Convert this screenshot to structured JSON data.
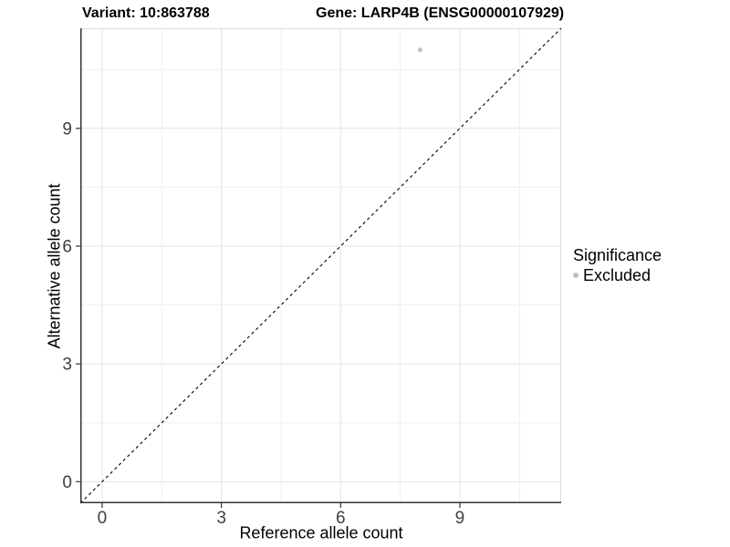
{
  "chart_data": {
    "type": "scatter",
    "title_left": "Variant: 10:863788",
    "title_right": "Gene: LARP4B (ENSG00000107929)",
    "xlabel": "Reference allele count",
    "ylabel": "Alternative allele count",
    "xlim": [
      -0.55,
      11.55
    ],
    "ylim": [
      -0.55,
      11.55
    ],
    "xticks": [
      0,
      3,
      6,
      9
    ],
    "yticks": [
      0,
      3,
      6,
      9
    ],
    "minor_xticks": [
      1.5,
      4.5,
      7.5,
      10.5
    ],
    "minor_yticks": [
      1.5,
      4.5,
      7.5,
      10.5
    ],
    "grid": "major+minor",
    "series": [
      {
        "name": "Excluded",
        "points": [
          {
            "x": 8,
            "y": 11
          }
        ],
        "color": "#bdbdbd"
      }
    ],
    "identity_line": {
      "style": "dashed",
      "color": "#000000"
    },
    "legend_position": "right"
  },
  "legend": {
    "title": "Significance",
    "items": [
      {
        "label": "Excluded",
        "color": "#bdbdbd"
      }
    ]
  },
  "colors": {
    "point": "#bdbdbd",
    "grid_major": "#e4e4e4",
    "grid_minor": "#efefef",
    "panel_border": "#dcdcdc",
    "axis_line": "#333333",
    "tick_label": "#404040",
    "identity_line": "#000000",
    "background": "#ffffff"
  }
}
